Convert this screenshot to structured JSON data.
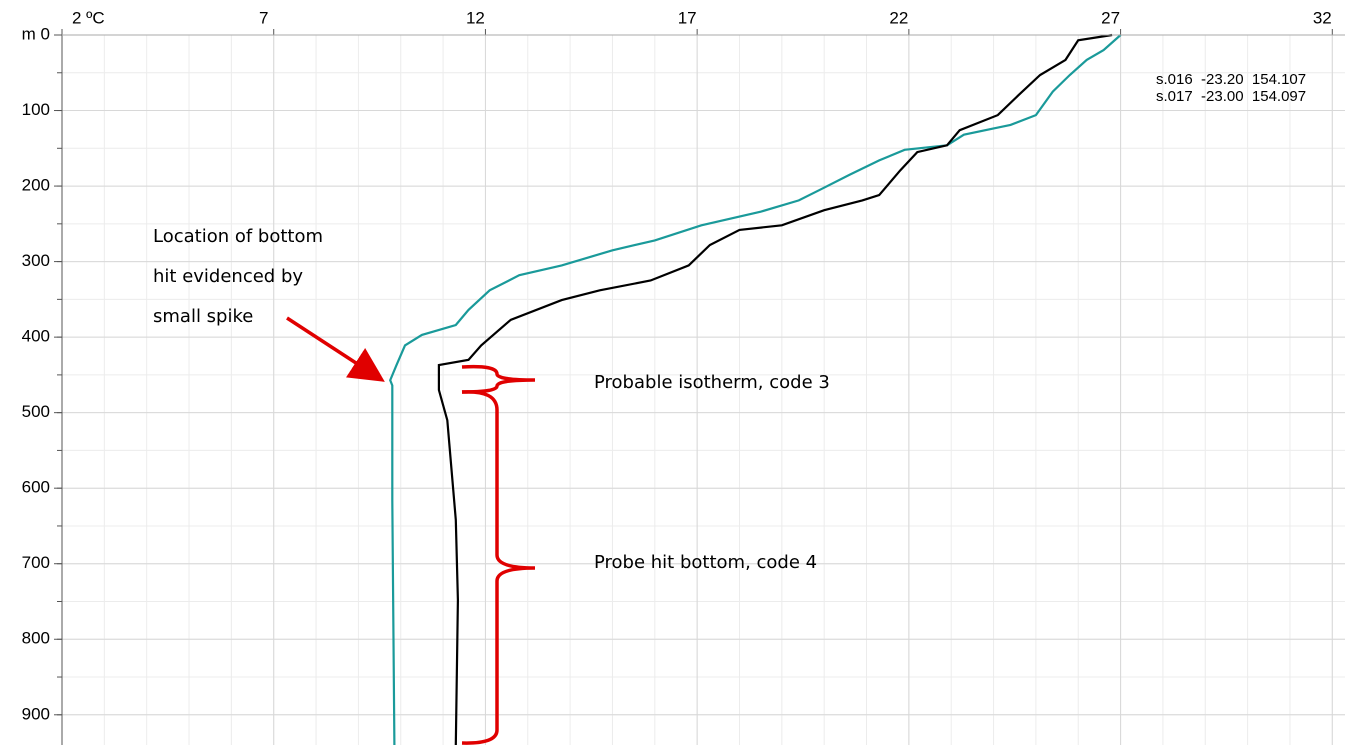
{
  "chart_data": {
    "type": "line",
    "xlim": [
      2,
      32.3
    ],
    "ylim": [
      0,
      940
    ],
    "y_inverted": true,
    "grid": true,
    "xticks": [
      {
        "value": 2,
        "label": "2 ºC"
      },
      7,
      12,
      17,
      22,
      27,
      32
    ],
    "yticks": [
      {
        "value": 0,
        "label": "m 0"
      },
      100,
      200,
      300,
      400,
      500,
      600,
      700,
      800,
      900
    ],
    "series": [
      {
        "name": "s.016  -23.20  154.107",
        "color": "#1a9a9a",
        "x": [
          27.0,
          26.6,
          26.2,
          25.8,
          25.4,
          25.0,
          24.4,
          23.3,
          22.9,
          21.9,
          21.3,
          20.6,
          19.9,
          19.4,
          18.5,
          17.1,
          16.0,
          15.0,
          13.8,
          12.8,
          12.1,
          11.6,
          11.3,
          10.5,
          10.1,
          9.9,
          9.75,
          9.8,
          9.8,
          9.85
        ],
        "values": [
          0,
          20,
          33,
          53,
          75,
          106,
          119,
          132,
          146,
          152,
          166,
          185,
          205,
          219,
          234,
          252,
          272,
          285,
          305,
          318,
          338,
          364,
          384,
          397,
          411,
          437,
          457,
          464,
          616,
          940
        ]
      },
      {
        "name": "s.017  -23.00  154.097",
        "color": "#000000",
        "x": [
          26.8,
          26.0,
          25.7,
          25.1,
          24.6,
          24.1,
          23.2,
          22.9,
          22.2,
          21.8,
          21.3,
          20.9,
          20.0,
          19.0,
          18.0,
          17.3,
          16.8,
          15.9,
          14.7,
          13.8,
          12.6,
          11.9,
          11.6,
          10.9,
          10.9,
          11.1,
          11.3,
          11.35,
          11.3
        ],
        "values": [
          0,
          7,
          33,
          53,
          79,
          106,
          126,
          146,
          155,
          179,
          212,
          219,
          232,
          252,
          258,
          278,
          305,
          325,
          338,
          351,
          377,
          411,
          430,
          437,
          470,
          510,
          642,
          748,
          940
        ]
      }
    ],
    "annotations": [
      "Location of bottom",
      "hit evidenced by",
      "small spike",
      "Probable isotherm, code 3",
      "Probe hit bottom, code 4"
    ]
  }
}
